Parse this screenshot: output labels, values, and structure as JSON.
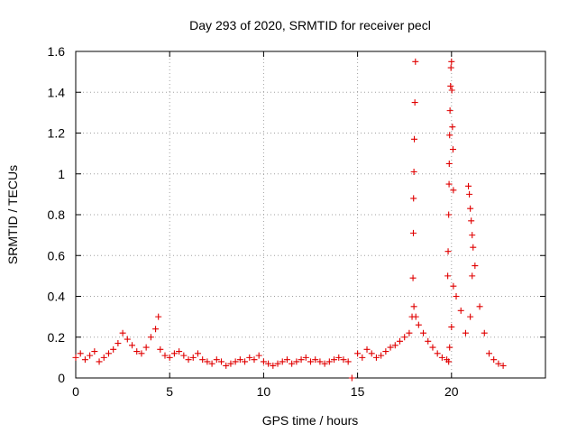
{
  "chart_data": {
    "type": "scatter",
    "title": "Day 293 of 2020, SRMTID for receiver pecl",
    "xlabel": "GPS time / hours",
    "ylabel": "SRMTID / TECUs",
    "xlim": [
      0,
      25
    ],
    "ylim": [
      0,
      1.6
    ],
    "x_ticks": [
      0,
      5,
      10,
      15,
      20
    ],
    "x_tick_labels": [
      "0",
      "5",
      "10",
      "15",
      "20"
    ],
    "y_ticks": [
      0,
      0.2,
      0.4,
      0.6,
      0.8,
      1,
      1.2,
      1.4,
      1.6
    ],
    "y_tick_labels": [
      "0",
      "0.2",
      "0.4",
      "0.6",
      "0.8",
      "1",
      "1.2",
      "1.4",
      "1.6"
    ],
    "grid": true,
    "marker": "+",
    "series": [
      {
        "name": "SRMTID",
        "color": "#e00000",
        "x": [
          0.0,
          0.25,
          0.5,
          0.75,
          1.0,
          1.25,
          1.5,
          1.75,
          2.0,
          2.25,
          2.5,
          2.75,
          3.0,
          3.25,
          3.5,
          3.75,
          4.0,
          4.25,
          4.4,
          4.5,
          4.75,
          5.0,
          5.25,
          5.5,
          5.75,
          6.0,
          6.25,
          6.5,
          6.75,
          7.0,
          7.25,
          7.5,
          7.75,
          8.0,
          8.25,
          8.5,
          8.75,
          9.0,
          9.25,
          9.5,
          9.75,
          10.0,
          10.25,
          10.5,
          10.75,
          11.0,
          11.25,
          11.5,
          11.75,
          12.0,
          12.25,
          12.5,
          12.75,
          13.0,
          13.25,
          13.5,
          13.75,
          14.0,
          14.25,
          14.5,
          14.7,
          15.0,
          15.25,
          15.5,
          15.75,
          16.0,
          16.25,
          16.5,
          16.75,
          17.0,
          17.25,
          17.5,
          17.75,
          17.9,
          18.0,
          18.1,
          18.25,
          18.5,
          18.75,
          19.0,
          19.25,
          19.5,
          19.75,
          19.85,
          19.9,
          20.0,
          20.1,
          20.25,
          20.5,
          20.75,
          21.0,
          21.1,
          21.25,
          21.5,
          21.75,
          22.0,
          22.25,
          22.5,
          22.75,
          17.95,
          17.97,
          17.98,
          18.0,
          18.02,
          18.05,
          18.08,
          19.8,
          19.82,
          19.85,
          19.87,
          19.88,
          19.9,
          19.92,
          19.95,
          19.97,
          20.0,
          20.02,
          20.05,
          20.08,
          20.1,
          20.9,
          20.95,
          21.0,
          21.05,
          21.1,
          21.15
        ],
        "y": [
          0.1,
          0.12,
          0.09,
          0.11,
          0.13,
          0.08,
          0.1,
          0.12,
          0.14,
          0.17,
          0.22,
          0.19,
          0.16,
          0.13,
          0.12,
          0.15,
          0.2,
          0.24,
          0.3,
          0.14,
          0.11,
          0.1,
          0.12,
          0.13,
          0.11,
          0.09,
          0.1,
          0.12,
          0.09,
          0.08,
          0.07,
          0.09,
          0.08,
          0.06,
          0.07,
          0.08,
          0.09,
          0.08,
          0.1,
          0.09,
          0.11,
          0.08,
          0.07,
          0.06,
          0.07,
          0.08,
          0.09,
          0.07,
          0.08,
          0.09,
          0.1,
          0.08,
          0.09,
          0.08,
          0.07,
          0.08,
          0.09,
          0.1,
          0.09,
          0.08,
          0.0,
          0.12,
          0.1,
          0.14,
          0.12,
          0.1,
          0.11,
          0.13,
          0.15,
          0.16,
          0.18,
          0.2,
          0.22,
          0.3,
          0.35,
          0.3,
          0.26,
          0.22,
          0.18,
          0.15,
          0.12,
          0.1,
          0.09,
          0.08,
          0.15,
          0.25,
          0.45,
          0.4,
          0.33,
          0.22,
          0.3,
          0.5,
          0.55,
          0.35,
          0.22,
          0.12,
          0.09,
          0.07,
          0.06,
          0.49,
          0.71,
          0.88,
          1.01,
          1.17,
          1.35,
          1.55,
          0.5,
          0.62,
          0.8,
          0.95,
          1.05,
          1.19,
          1.31,
          1.43,
          1.52,
          1.55,
          1.41,
          1.23,
          1.12,
          0.92,
          0.94,
          0.9,
          0.83,
          0.77,
          0.7,
          0.64
        ]
      }
    ]
  }
}
